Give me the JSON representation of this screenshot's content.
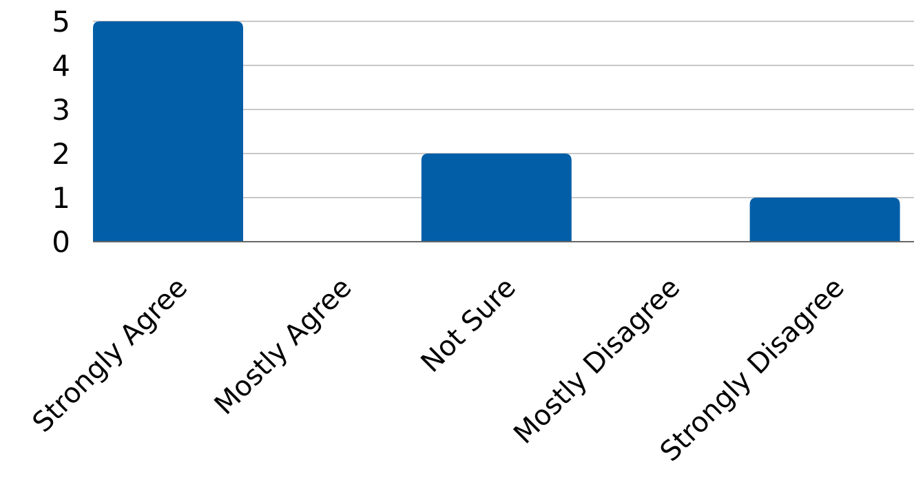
{
  "chart_data": {
    "type": "bar",
    "title": "",
    "xlabel": "",
    "ylabel": "",
    "categories": [
      "Strongly Agree",
      "Mostly Agree",
      "Not Sure",
      "Mostly Disagree",
      "Strongly Disagree"
    ],
    "values": [
      5,
      0,
      2,
      0,
      1
    ],
    "ylim": [
      0,
      5
    ],
    "yticks": [
      "0",
      "1",
      "2",
      "3",
      "4",
      "5"
    ],
    "grid": true,
    "legend": "none",
    "bar_color": "#035EA8"
  }
}
